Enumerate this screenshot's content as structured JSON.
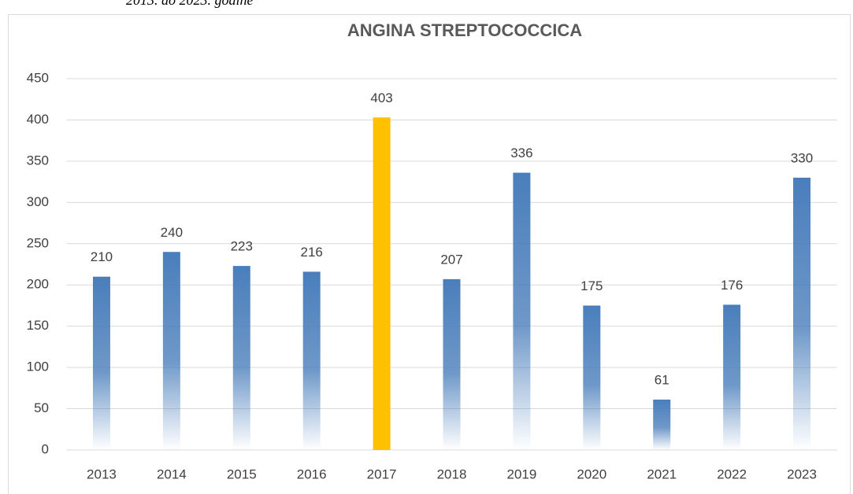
{
  "caption": "2013. do 2023. godine",
  "chart_data": {
    "type": "bar",
    "title": "ANGINA STREPTOCOCCICA",
    "categories": [
      "2013",
      "2014",
      "2015",
      "2016",
      "2017",
      "2018",
      "2019",
      "2020",
      "2021",
      "2022",
      "2023"
    ],
    "values": [
      210,
      240,
      223,
      216,
      403,
      207,
      336,
      175,
      61,
      176,
      330
    ],
    "colors": [
      "#4a7ebb",
      "#4a7ebb",
      "#4a7ebb",
      "#4a7ebb",
      "#ffc000",
      "#4a7ebb",
      "#4a7ebb",
      "#4a7ebb",
      "#4a7ebb",
      "#4a7ebb",
      "#4a7ebb"
    ],
    "ylim": [
      0,
      450
    ],
    "yticks": [
      0,
      50,
      100,
      150,
      200,
      250,
      300,
      350,
      400,
      450
    ],
    "grid": true
  }
}
